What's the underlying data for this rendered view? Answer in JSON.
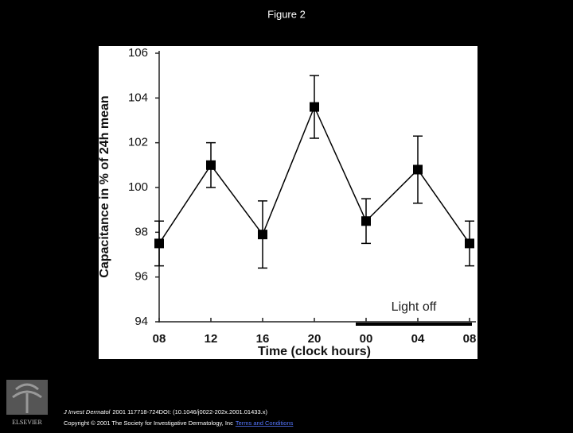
{
  "title": "Figure 2",
  "chart_data": {
    "type": "line",
    "xlabel": "Time (clock hours)",
    "ylabel": "Capacitance in % of 24h mean",
    "categories": [
      "08",
      "12",
      "16",
      "20",
      "00",
      "04",
      "08"
    ],
    "values": [
      97.5,
      101.0,
      97.9,
      103.6,
      98.5,
      100.8,
      97.5
    ],
    "errors": [
      1.0,
      1.0,
      1.5,
      1.4,
      1.0,
      1.5,
      1.0
    ],
    "color": "#000000",
    "ylim": [
      94,
      106
    ],
    "yticks": [
      94,
      96,
      98,
      100,
      102,
      104,
      106
    ],
    "annotation": "Light off"
  },
  "footer": {
    "logo": "ELSEVIER",
    "journal": "J Invest Dermatol",
    "citation": "2001 117718-724DOI: (10.1046/j0022-202x.2001.01433.x)",
    "copyright": "Copyright © 2001 The Society for Investigative Dermatology, Inc",
    "link": "Terms and Conditions"
  }
}
